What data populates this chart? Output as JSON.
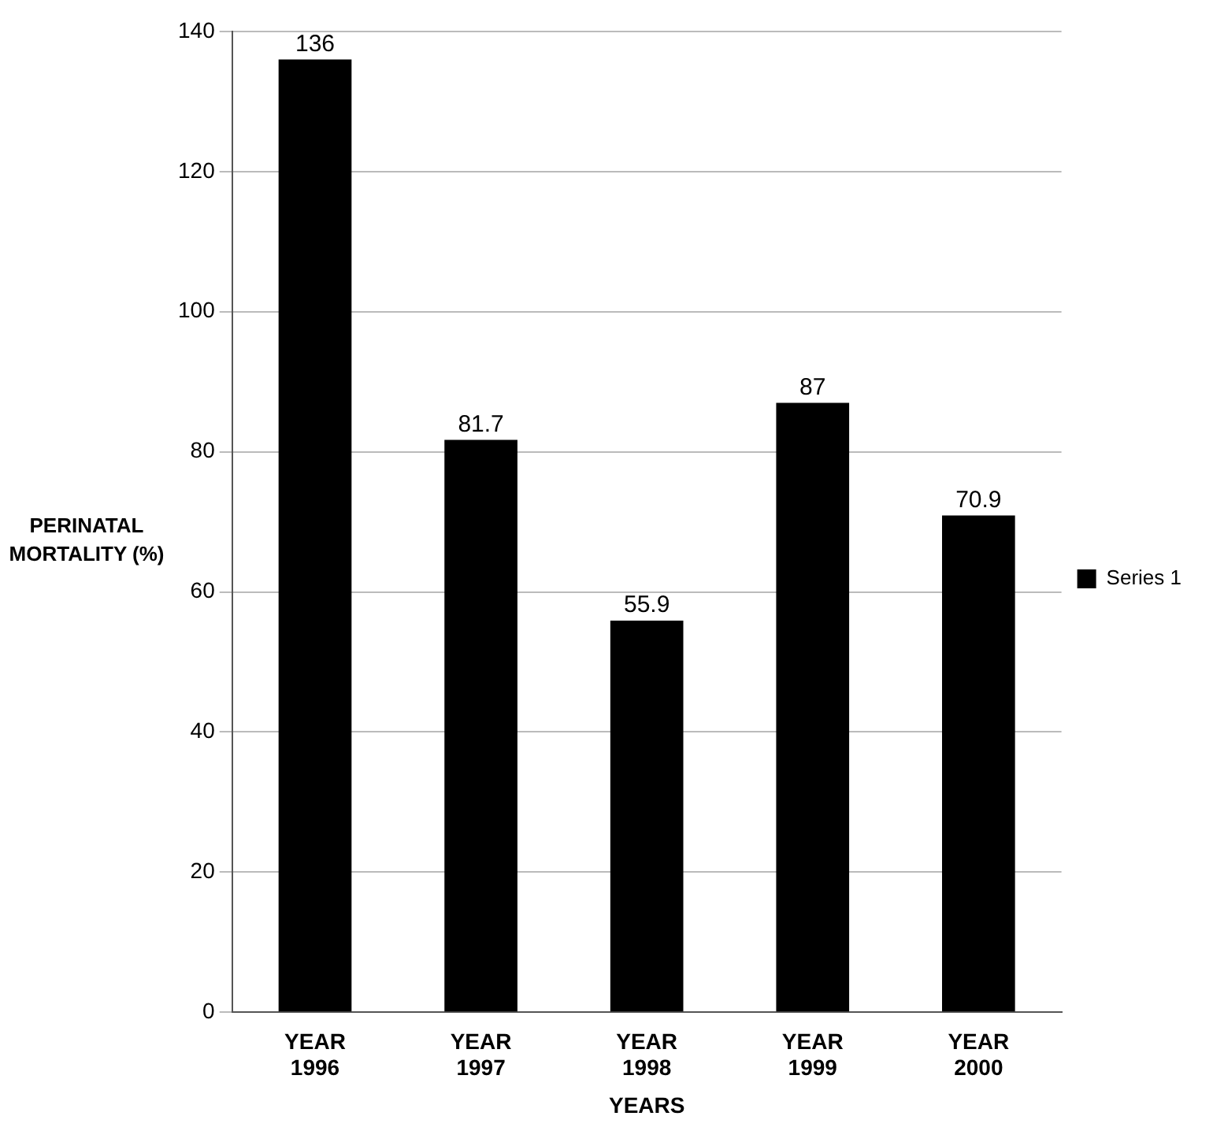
{
  "chart_data": {
    "type": "bar",
    "xlabel": "YEARS",
    "ylabel": "PERINATAL MORTALITY (%)",
    "categories": [
      "YEAR 1996",
      "YEAR 1997",
      "YEAR 1998",
      "YEAR 1999",
      "YEAR 2000"
    ],
    "series": [
      {
        "name": "Series 1",
        "color": "#000000",
        "values": [
          136,
          81.7,
          55.9,
          87,
          70.9
        ]
      }
    ],
    "ylim": [
      0,
      140
    ],
    "yticks": [
      0,
      20,
      40,
      60,
      80,
      100,
      120,
      140
    ],
    "grid": "y",
    "legend": "right",
    "data_labels": true
  }
}
